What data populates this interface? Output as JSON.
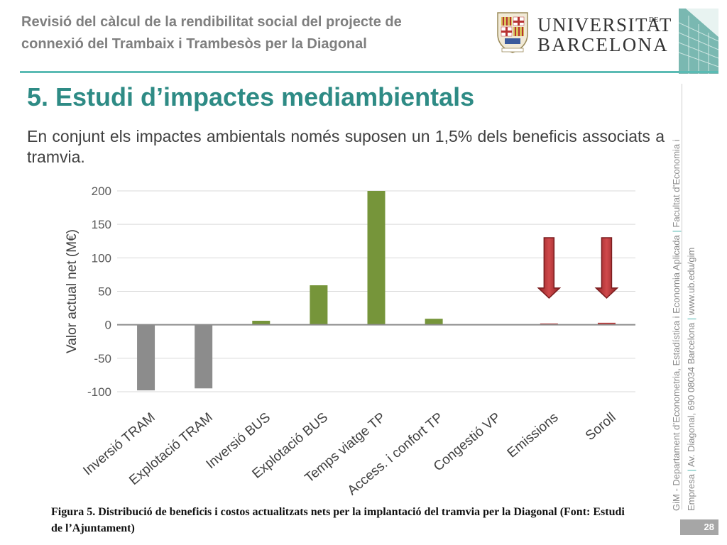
{
  "header": {
    "title_line1": "Revisió del càlcul de la rendibilitat social del projecte de",
    "title_line2": "connexió del Trambaix i Trambesòs per la Diagonal"
  },
  "logo": {
    "word1": "UNIVERSITAT",
    "word_de": "DE",
    "word2": "BARCELONA"
  },
  "slide": {
    "title": "5. Estudi d’impactes mediambientals",
    "subtitle": "En conjunt els impactes ambientals només suposen un 1,5% dels beneficis associats a tramvia."
  },
  "chart_data": {
    "type": "bar",
    "categories": [
      "Inversió TRAM",
      "Explotació TRAM",
      "Inversió BUS",
      "Explotació BUS",
      "Temps viatge TP",
      "Access. i confort TP",
      "Congestió VP",
      "Emissions",
      "Soroll"
    ],
    "values": [
      -98,
      -95,
      6,
      59,
      200,
      9,
      0,
      2,
      3
    ],
    "colors": [
      "#8c8c8c",
      "#8c8c8c",
      "#76953a",
      "#76953a",
      "#76953a",
      "#76953a",
      "#76953a",
      "#b73c3c",
      "#b73c3c"
    ],
    "ylabel": "Valor actual net (M€)",
    "xlabel": "",
    "ylim": [
      -100,
      200
    ],
    "yticks": [
      200,
      150,
      100,
      50,
      0,
      -50,
      -100
    ],
    "grid": true,
    "annotations": [
      {
        "type": "down-arrow",
        "category": "Emissions",
        "from": 130,
        "to": 40,
        "color": "#c0393b"
      },
      {
        "type": "down-arrow",
        "category": "Soroll",
        "from": 130,
        "to": 40,
        "color": "#c0393b"
      }
    ]
  },
  "caption": "Figura 5. Distribució de beneficis i costos actualitzats nets per la implantació del tramvia per la Diagonal (Font: Estudi de l’Ajuntament)",
  "side_footer": {
    "line1_a": "GiM - Departament d’Econometria, Estadística i Economia Aplicada",
    "line1_sep": "|",
    "line1_b": "Facultat d’Economia i",
    "line2_a": "Empresa",
    "line2_sep1": "|",
    "line2_b": "Av. Diagonal, 690 08034 Barcelona",
    "line2_sep2": "|",
    "line2_c": "www.ub.edu/gim"
  },
  "page_number": "28"
}
